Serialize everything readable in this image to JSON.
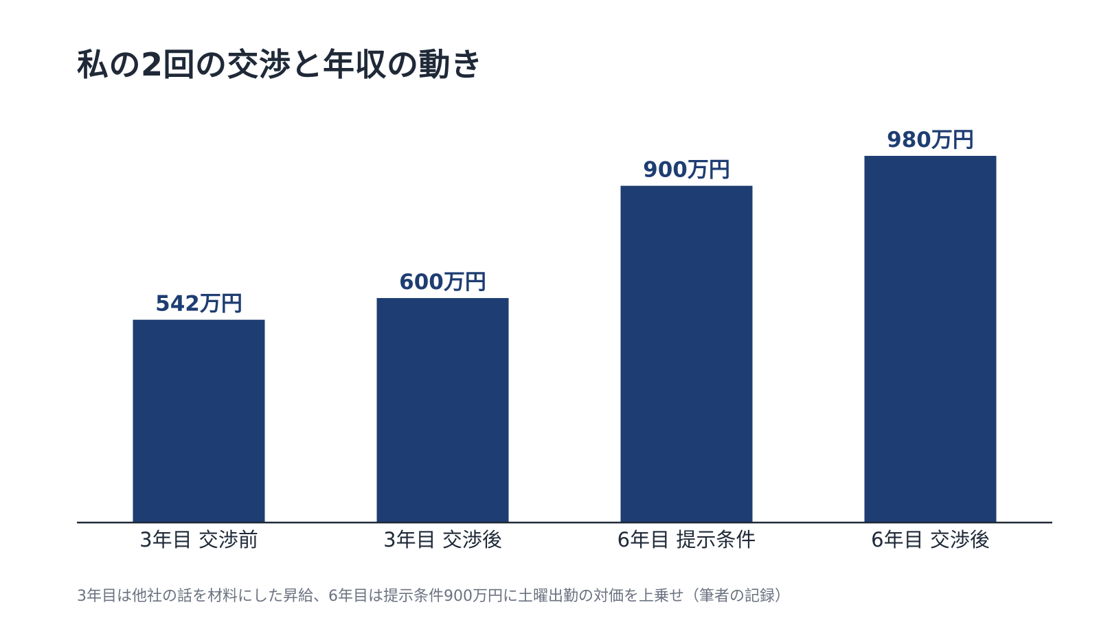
{
  "title": "私の2回の交渉と年収の動き",
  "footnote": "3年目は他社の話を材料にした昇給、6年目は提示条件900万円に土曜出勤の対価を上乗せ（筆者の記録）",
  "colors": {
    "bar": "#1e3d72",
    "label": "#1e3d72",
    "axis": "#1f2937",
    "tick": "#1f2937"
  },
  "chart_data": {
    "type": "bar",
    "title": "私の2回の交渉と年収の動き",
    "xlabel": "",
    "ylabel": "",
    "unit": "万円",
    "categories": [
      "3年目 交渉前",
      "3年目 交渉後",
      "6年目 提示条件",
      "6年目 交渉後"
    ],
    "values": [
      542,
      600,
      900,
      980
    ],
    "data_labels": [
      "542万円",
      "600万円",
      "900万円",
      "980万円"
    ],
    "ylim": [
      0,
      1180
    ],
    "grid": false,
    "legend": "none"
  }
}
